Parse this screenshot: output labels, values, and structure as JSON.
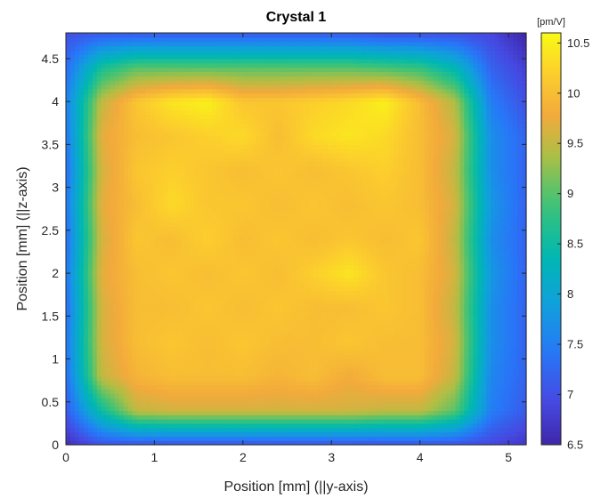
{
  "chart_data": {
    "type": "heatmap",
    "title": "Crystal 1",
    "xlabel": "Position [mm] (||y-axis)",
    "ylabel": "Position [mm] (||z-axis)",
    "xlim": [
      0,
      5.2
    ],
    "ylim": [
      0,
      4.8
    ],
    "x_ticks": [
      0,
      1,
      2,
      3,
      4,
      5
    ],
    "y_ticks": [
      0,
      0.5,
      1,
      1.5,
      2,
      2.5,
      3,
      3.5,
      4,
      4.5
    ],
    "colormap": "parula",
    "colorbar": {
      "label": "[pm/V]",
      "range": [
        6.5,
        10.6
      ],
      "ticks": [
        6.5,
        7,
        7.5,
        8,
        8.5,
        9,
        9.5,
        10,
        10.5
      ]
    },
    "x": [
      0.0,
      0.4,
      0.8,
      1.2,
      1.6,
      2.0,
      2.4,
      2.8,
      3.2,
      3.6,
      4.0,
      4.4,
      4.8,
      5.2
    ],
    "y": [
      0.0,
      0.4,
      0.8,
      1.2,
      1.6,
      2.0,
      2.4,
      2.8,
      3.2,
      3.6,
      4.0,
      4.4,
      4.8
    ],
    "z": [
      [
        6.6,
        7.0,
        7.0,
        7.0,
        7.0,
        7.0,
        7.0,
        7.0,
        7.0,
        7.0,
        7.0,
        7.0,
        6.9,
        6.7
      ],
      [
        7.1,
        8.5,
        9.5,
        9.6,
        9.6,
        9.6,
        9.6,
        9.6,
        9.6,
        9.5,
        9.5,
        9.0,
        7.5,
        7.1
      ],
      [
        7.3,
        9.5,
        9.9,
        10.0,
        10.0,
        10.0,
        9.9,
        10.0,
        9.8,
        10.0,
        10.0,
        9.5,
        7.6,
        7.2
      ],
      [
        7.4,
        9.6,
        10.0,
        10.1,
        10.0,
        10.1,
        10.0,
        10.0,
        10.1,
        10.0,
        10.0,
        9.6,
        7.7,
        7.2
      ],
      [
        7.3,
        9.6,
        10.0,
        10.0,
        10.1,
        10.0,
        10.1,
        10.0,
        10.0,
        10.1,
        10.0,
        9.5,
        7.7,
        7.2
      ],
      [
        7.4,
        9.7,
        10.0,
        10.1,
        10.0,
        10.1,
        10.0,
        10.2,
        10.4,
        10.1,
        10.0,
        9.6,
        7.8,
        7.2
      ],
      [
        7.3,
        9.6,
        10.1,
        10.0,
        10.2,
        10.0,
        10.1,
        10.0,
        10.1,
        10.0,
        10.1,
        9.5,
        7.7,
        7.2
      ],
      [
        7.4,
        9.7,
        10.0,
        10.3,
        10.1,
        10.1,
        10.0,
        10.1,
        10.0,
        10.1,
        10.0,
        9.6,
        7.8,
        7.2
      ],
      [
        7.3,
        9.6,
        10.1,
        10.2,
        10.1,
        10.0,
        10.1,
        10.0,
        10.1,
        10.2,
        10.0,
        9.5,
        7.7,
        7.2
      ],
      [
        7.4,
        9.7,
        10.0,
        10.1,
        10.2,
        10.3,
        10.0,
        10.3,
        10.4,
        10.3,
        10.0,
        9.6,
        7.7,
        7.2
      ],
      [
        7.5,
        9.5,
        10.1,
        10.4,
        10.5,
        10.1,
        10.1,
        10.2,
        10.3,
        10.5,
        10.0,
        9.4,
        7.5,
        7.0
      ],
      [
        7.3,
        8.6,
        9.0,
        9.0,
        9.0,
        9.0,
        9.0,
        9.0,
        9.0,
        8.9,
        8.8,
        8.3,
        7.2,
        6.8
      ],
      [
        7.0,
        7.1,
        7.1,
        7.1,
        7.1,
        7.1,
        7.1,
        7.1,
        7.1,
        7.0,
        7.0,
        7.0,
        6.9,
        6.5
      ]
    ]
  }
}
